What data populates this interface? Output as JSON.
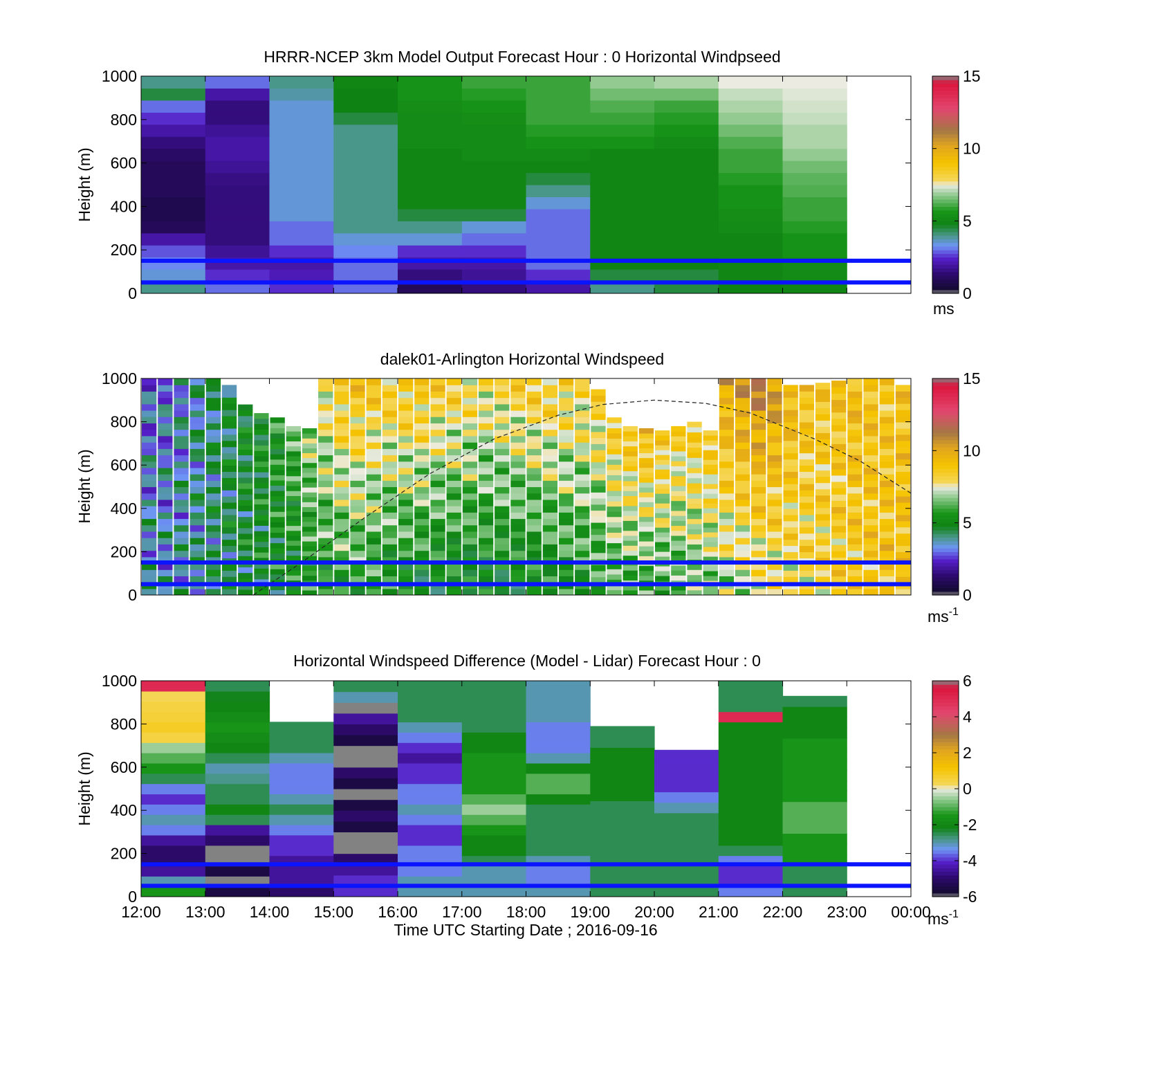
{
  "chart_data": [
    {
      "type": "heatmap",
      "title": "HRRR-NCEP 3km Model Output   Forecast Hour : 0 Horizontal Windpseed",
      "ylabel": "Height (m)",
      "xlabel": "",
      "ylim": [
        0,
        1000
      ],
      "yticks": [
        "0",
        "200",
        "400",
        "600",
        "800",
        "1000"
      ],
      "xticks": [
        "12:00",
        "13:00",
        "14:00",
        "15:00",
        "16:00",
        "17:00",
        "18:00",
        "19:00",
        "20:00",
        "21:00",
        "22:00",
        "23:00",
        "00:00"
      ],
      "show_xtick_labels": false,
      "colorbar": {
        "range": [
          0,
          15
        ],
        "ticks": [
          "0",
          "5",
          "10",
          "15"
        ],
        "unit": "ms",
        "unit_exponent": ""
      },
      "reference_lines_m": [
        50,
        150
      ],
      "columns": [
        {
          "time": "12:00",
          "top": 1000,
          "values": [
            4,
            3.5,
            3.2,
            2.8,
            2,
            1,
            0.8,
            0.8,
            1,
            1,
            1,
            1.2,
            1.5,
            2,
            2.5,
            3,
            4.5,
            4
          ]
        },
        {
          "time": "13:00",
          "top": 1000,
          "values": [
            3,
            2.5,
            2,
            1.8,
            1.5,
            1.5,
            1.5,
            1.5,
            1.5,
            1.6,
            1.8,
            2,
            2,
            1.8,
            1.5,
            1.5,
            2,
            3
          ]
        },
        {
          "time": "14:00",
          "top": 1000,
          "values": [
            2.5,
            2.2,
            2,
            2.5,
            3,
            3,
            3.5,
            3.5,
            3.5,
            3.5,
            3.5,
            3.5,
            3.5,
            3.5,
            3.5,
            3.5,
            3.8,
            4
          ]
        },
        {
          "time": "15:00",
          "top": 1000,
          "values": [
            3,
            3,
            3,
            3.2,
            3.5,
            4,
            4,
            4,
            4,
            4,
            4,
            4,
            4,
            4,
            4.5,
            4.8,
            4.8,
            5
          ]
        },
        {
          "time": "16:00",
          "top": 1000,
          "values": [
            1,
            1.5,
            2,
            2.5,
            3.5,
            4,
            4.5,
            5,
            5,
            5,
            5,
            5,
            5.2,
            5.2,
            5.2,
            5.3,
            5.5,
            5.5
          ]
        },
        {
          "time": "17:00",
          "top": 1000,
          "values": [
            1.5,
            1.8,
            2,
            2.5,
            3,
            3.5,
            4.5,
            5,
            5,
            5,
            5,
            5.2,
            5.2,
            5.2,
            5.3,
            5.5,
            5.8,
            6
          ]
        },
        {
          "time": "18:00",
          "top": 1000,
          "values": [
            2,
            2.5,
            3,
            3,
            3,
            3,
            3,
            3.5,
            4,
            4.5,
            5,
            5.2,
            5.5,
            5.8,
            6,
            6,
            6,
            6
          ]
        },
        {
          "time": "19:00",
          "top": 1000,
          "values": [
            4,
            4.5,
            4.8,
            5,
            5,
            5,
            5,
            5,
            5,
            5,
            5,
            5,
            5.5,
            5.8,
            6,
            6.2,
            6.5,
            6.8
          ]
        },
        {
          "time": "20:00",
          "top": 1000,
          "values": [
            4.5,
            4.5,
            4.8,
            5,
            5,
            5,
            5,
            5,
            5,
            5,
            5,
            5,
            5.2,
            5.5,
            5.8,
            6,
            6.5,
            7
          ]
        },
        {
          "time": "21:00",
          "top": 1000,
          "values": [
            4.8,
            5,
            5,
            5,
            5,
            5.2,
            5.3,
            5.5,
            5.5,
            5.8,
            6,
            6,
            6.2,
            6.5,
            6.8,
            7,
            7.2,
            7.5
          ]
        },
        {
          "time": "22:00",
          "top": 1000,
          "values": [
            5,
            5.2,
            5.2,
            5.5,
            5.5,
            5.8,
            6,
            6,
            6.2,
            6.3,
            6.5,
            6.8,
            7,
            7,
            7.2,
            7.3,
            7.4,
            7.5
          ]
        },
        {
          "time": "23:00",
          "top": 0,
          "values": []
        }
      ]
    },
    {
      "type": "heatmap",
      "title": "dalek01-Arlington  Horizontal Windspeed",
      "ylabel": "Height (m)",
      "xlabel": "",
      "ylim": [
        0,
        1000
      ],
      "yticks": [
        "0",
        "200",
        "400",
        "600",
        "800",
        "1000"
      ],
      "xticks": [
        "12:00",
        "13:00",
        "14:00",
        "15:00",
        "16:00",
        "17:00",
        "18:00",
        "19:00",
        "20:00",
        "21:00",
        "22:00",
        "23:00",
        "00:00"
      ],
      "show_xtick_labels": false,
      "colorbar": {
        "range": [
          0,
          15
        ],
        "ticks": [
          "0",
          "5",
          "10",
          "15"
        ],
        "unit": "ms",
        "unit_exponent": "-1"
      },
      "reference_lines_m": [
        50,
        150
      ],
      "overlay_curve": {
        "style": "dashed",
        "x_hours": [
          13.75,
          14.5,
          15.5,
          16.5,
          17.5,
          18.5,
          19.2,
          20,
          20.8,
          21.5,
          22.5,
          23.2,
          24
        ],
        "heights_m": [
          0,
          150,
          360,
          560,
          720,
          830,
          880,
          900,
          885,
          840,
          720,
          620,
          470
        ]
      },
      "profile_times": [
        "12:00",
        "12:15",
        "12:30",
        "12:45",
        "13:00",
        "13:15",
        "13:30",
        "13:45",
        "14:00",
        "14:15",
        "14:30",
        "14:45",
        "15:00",
        "15:15",
        "15:30",
        "15:45",
        "16:00",
        "16:15",
        "16:30",
        "16:45",
        "17:00",
        "17:15",
        "17:30",
        "17:45",
        "18:00",
        "18:15",
        "18:30",
        "18:45",
        "19:00",
        "19:15",
        "19:30",
        "19:45",
        "20:00",
        "20:15",
        "20:30",
        "20:45",
        "21:00",
        "21:15",
        "21:30",
        "21:45",
        "22:00",
        "22:15",
        "22:30",
        "22:45",
        "23:00",
        "23:15",
        "23:30",
        "23:45"
      ],
      "profile_tops_m": [
        1000,
        1000,
        1000,
        1000,
        1000,
        970,
        880,
        840,
        820,
        780,
        770,
        1000,
        1000,
        1000,
        1000,
        1000,
        1000,
        1000,
        1000,
        1000,
        1000,
        1000,
        1000,
        1000,
        1000,
        1000,
        1000,
        1000,
        950,
        820,
        780,
        770,
        760,
        780,
        800,
        760,
        1000,
        1000,
        1000,
        1000,
        970,
        970,
        980,
        990,
        1000,
        1000,
        1000,
        970
      ],
      "profile_surface_speed": [
        3.8,
        3.6,
        3.8,
        4.0,
        4.2,
        4.4,
        4.6,
        4.8,
        5.0,
        5.2,
        5.4,
        5.6,
        5.8,
        5.8,
        5.6,
        5.4,
        5.2,
        5.0,
        5.0,
        5.0,
        5.0,
        5.0,
        5.0,
        5.0,
        5.0,
        5.2,
        5.4,
        5.6,
        5.8,
        6.0,
        6.0,
        6.0,
        6.0,
        6.2,
        6.4,
        6.6,
        7.0,
        7.2,
        7.4,
        7.6,
        7.8,
        8.0,
        8.2,
        8.4,
        8.6,
        8.8,
        9.0,
        9.0
      ],
      "profile_top_speed": [
        3.0,
        3.2,
        3.5,
        3.8,
        4.2,
        4.6,
        5.0,
        5.2,
        5.6,
        6.2,
        7.0,
        8.0,
        8.8,
        9.0,
        8.8,
        8.6,
        8.8,
        9.0,
        8.6,
        8.4,
        8.2,
        8.0,
        8.2,
        8.4,
        8.6,
        8.6,
        8.4,
        8.2,
        8.4,
        8.6,
        9.0,
        9.2,
        8.8,
        8.4,
        8.6,
        8.8,
        10.0,
        10.5,
        11.0,
        10.5,
        9.5,
        9.0,
        8.8,
        9.0,
        9.2,
        9.0,
        8.8,
        9.0
      ]
    },
    {
      "type": "heatmap",
      "title": "Horizontal Windspeed Difference (Model - Lidar) Forecast Hour : 0",
      "ylabel": "Height (m)",
      "xlabel": "Time UTC  Starting Date ; 2016-09-16",
      "ylim": [
        0,
        1000
      ],
      "yticks": [
        "0",
        "200",
        "400",
        "600",
        "800",
        "1000"
      ],
      "xticks": [
        "12:00",
        "13:00",
        "14:00",
        "15:00",
        "16:00",
        "17:00",
        "18:00",
        "19:00",
        "20:00",
        "21:00",
        "22:00",
        "23:00",
        "00:00"
      ],
      "show_xtick_labels": true,
      "colorbar": {
        "range": [
          -6,
          6
        ],
        "ticks": [
          "-6",
          "-4",
          "-2",
          "0",
          "2",
          "4",
          "6"
        ],
        "unit": "ms",
        "unit_exponent": "-1"
      },
      "reference_lines_m": [
        50,
        150
      ],
      "columns": [
        {
          "time": "12:00",
          "top": 1000,
          "values": [
            -1.5,
            -3,
            -4.5,
            -5,
            -5,
            -4.5,
            -3.5,
            -3,
            -3.5,
            -4,
            -3.5,
            -2.5,
            -1.5,
            -1,
            -0.5,
            0.5,
            0.8,
            0.6,
            0.5,
            0.3,
            5
          ]
        },
        {
          "time": "13:00",
          "top": 1000,
          "values": [
            -5.5,
            -6,
            -5.5,
            -6,
            -6,
            -5,
            -4.5,
            -2.5,
            -2,
            -2.5,
            -2.5,
            -2.8,
            -3,
            -2.5,
            -2,
            -1.8,
            -1.5,
            -1.8,
            -2,
            -2.2,
            -2.5
          ]
        },
        {
          "time": "14:00",
          "top": 810,
          "values": [
            -5,
            -4.5,
            -4.5,
            -4.5,
            -4,
            -4,
            -3.5,
            -3,
            -2.5,
            -3,
            -3.5,
            -3.5,
            -3.5,
            -3,
            -2.5,
            -2.5,
            -2.5
          ]
        },
        {
          "time": "15:00",
          "top": 1000,
          "values": [
            -4,
            -4,
            -4.5,
            -5,
            -6,
            -6,
            -5.5,
            -5,
            -5.5,
            -6,
            -5.5,
            -5,
            -6,
            -6,
            -5.5,
            -5,
            -4.5,
            -6,
            -3,
            -2.5
          ]
        },
        {
          "time": "16:00",
          "top": 1000,
          "values": [
            -3,
            -3,
            -3.5,
            -3.5,
            -3.5,
            -4,
            -4,
            -3.5,
            -3,
            -3.5,
            -3.5,
            -4,
            -4,
            -4.5,
            -4,
            -3.5,
            -3,
            -2.5,
            -2.5,
            -2.5,
            -2.5
          ]
        },
        {
          "time": "17:00",
          "top": 1000,
          "values": [
            -3,
            -3,
            -3,
            -2.5,
            -2,
            -2,
            -1.5,
            -1,
            -0.5,
            -1,
            -1.5,
            -1.5,
            -1.5,
            -1.5,
            -2,
            -2,
            -2.5,
            -2.5,
            -2.5,
            -2.5,
            -2.5
          ]
        },
        {
          "time": "18:00",
          "top": 1000,
          "values": [
            -3,
            -3.5,
            -3.5,
            -3,
            -2.5,
            -2.5,
            -2.5,
            -2.5,
            -2.5,
            -2,
            -1,
            -1,
            -2,
            -3,
            -3.5,
            -3.5,
            -3.5,
            -3,
            -3,
            -3,
            -3
          ]
        },
        {
          "time": "19:00",
          "top": 790,
          "values": [
            -2.5,
            -2.5,
            -2.5,
            -2.5,
            -2.5,
            -2.5,
            -2.5,
            -2.5,
            -2.5,
            -2,
            -2,
            -2,
            -2,
            -2,
            -2.5,
            -2.5
          ]
        },
        {
          "time": "20:00",
          "top": 680,
          "values": [
            -2.5,
            -2.5,
            -2.5,
            -2.5,
            -2.5,
            -2.5,
            -2.5,
            -2.5,
            -3,
            -3.5,
            -4,
            -4,
            -4,
            -4
          ]
        },
        {
          "time": "21:00",
          "top": 1000,
          "values": [
            -3.5,
            -4,
            -4,
            -3.5,
            -2.5,
            -2,
            -2,
            -2,
            -2,
            -2,
            -2,
            -2,
            -2,
            -2,
            -2,
            -2,
            -2,
            5,
            -2.5,
            -2.5,
            -2.5
          ]
        },
        {
          "time": "22:00",
          "top": 930,
          "values": [
            -2.5,
            -2.5,
            -2.5,
            -1.5,
            -1.5,
            -1.5,
            -1,
            -1,
            -1,
            -1.5,
            -1.5,
            -1.5,
            -1.5,
            -1.5,
            -1.5,
            -2,
            -2,
            -2,
            -2.5
          ]
        },
        {
          "time": "23:00",
          "top": 0,
          "values": []
        }
      ]
    }
  ]
}
